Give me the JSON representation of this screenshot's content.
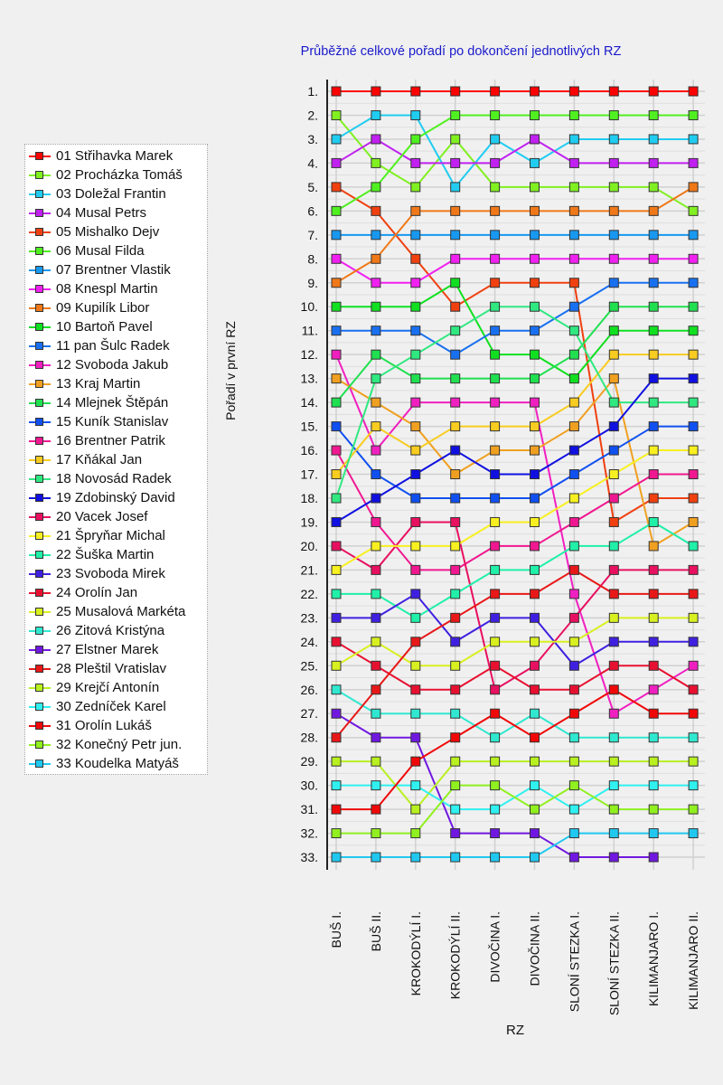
{
  "chart_data": {
    "type": "line",
    "title": "Průběžné celkové pořadí po dokončení jednotlivých RZ",
    "xlabel": "RZ",
    "ylabel": "Pořadí v první RZ",
    "categories": [
      "BUŠ I.",
      "BUŠ II.",
      "KROKODÝLÍ I.",
      "KROKODÝLÍ II.",
      "DIVOČINA I.",
      "DIVOČINA II.",
      "SLONÍ STEZKA I.",
      "SLONÍ STEZKA II.",
      "KILIMANJARO I.",
      "KILIMANJARO II."
    ],
    "yticks": [
      "1.",
      "2.",
      "3.",
      "4.",
      "5.",
      "6.",
      "7.",
      "8.",
      "9.",
      "10.",
      "11.",
      "12.",
      "13.",
      "14.",
      "15.",
      "16.",
      "17.",
      "18.",
      "19.",
      "20.",
      "21.",
      "22.",
      "23.",
      "24.",
      "25.",
      "26.",
      "27.",
      "28.",
      "29.",
      "30.",
      "31.",
      "32.",
      "33."
    ],
    "ylim": [
      1,
      33
    ],
    "y_inverted": true,
    "grid": true,
    "legend_position": "left",
    "series": [
      {
        "name": "01 Střihavka Marek",
        "color": "#ff0000",
        "values": [
          1,
          1,
          1,
          1,
          1,
          1,
          1,
          1,
          1,
          1
        ]
      },
      {
        "name": "02 Procházka Tomáš",
        "color": "#80f020",
        "values": [
          2,
          4,
          5,
          3,
          5,
          5,
          5,
          5,
          5,
          6
        ]
      },
      {
        "name": "03 Doležal Frantin",
        "color": "#20ccf0",
        "values": [
          3,
          2,
          2,
          5,
          3,
          4,
          3,
          3,
          3,
          3
        ]
      },
      {
        "name": "04 Musal Petrs",
        "color": "#c020f0",
        "values": [
          4,
          3,
          4,
          4,
          4,
          3,
          4,
          4,
          4,
          4
        ]
      },
      {
        "name": "05 Mishalko Dejv",
        "color": "#f04010",
        "values": [
          5,
          6,
          8,
          10,
          9,
          9,
          9,
          19,
          18,
          18
        ]
      },
      {
        "name": "06 Musal Filda",
        "color": "#50f020",
        "values": [
          6,
          5,
          3,
          2,
          2,
          2,
          2,
          2,
          2,
          2
        ]
      },
      {
        "name": "07 Brentner Vlastik",
        "color": "#1898f0",
        "values": [
          7,
          7,
          7,
          7,
          7,
          7,
          7,
          7,
          7,
          7
        ]
      },
      {
        "name": "08 Knespl Martin",
        "color": "#f020f0",
        "values": [
          8,
          9,
          9,
          8,
          8,
          8,
          8,
          8,
          8,
          8
        ]
      },
      {
        "name": "09 Kupilík Libor",
        "color": "#f07818",
        "values": [
          9,
          8,
          6,
          6,
          6,
          6,
          6,
          6,
          6,
          5
        ]
      },
      {
        "name": "10 Bartoň Pavel",
        "color": "#10e020",
        "values": [
          10,
          10,
          10,
          9,
          12,
          12,
          13,
          11,
          11,
          11
        ]
      },
      {
        "name": "11 pan Šulc Radek",
        "color": "#1870f0",
        "values": [
          11,
          11,
          11,
          12,
          11,
          11,
          10,
          9,
          9,
          9
        ]
      },
      {
        "name": "12 Svoboda Jakub",
        "color": "#f020c0",
        "values": [
          12,
          16,
          14,
          14,
          14,
          14,
          22,
          27,
          26,
          25
        ]
      },
      {
        "name": "13 Kraj Martin",
        "color": "#f0a020",
        "values": [
          13,
          14,
          15,
          17,
          16,
          16,
          15,
          13,
          20,
          19
        ]
      },
      {
        "name": "14 Mlejnek Štěpán",
        "color": "#20e050",
        "values": [
          14,
          12,
          13,
          13,
          13,
          13,
          12,
          10,
          10,
          10
        ]
      },
      {
        "name": "15 Kuník Stanislav",
        "color": "#1050f0",
        "values": [
          15,
          17,
          18,
          18,
          18,
          18,
          17,
          16,
          15,
          15
        ]
      },
      {
        "name": "16 Brentner Patrik",
        "color": "#f01890",
        "values": [
          16,
          19,
          21,
          21,
          20,
          20,
          19,
          18,
          17,
          17
        ]
      },
      {
        "name": "17 Kňákal Jan",
        "color": "#f8cc20",
        "values": [
          17,
          15,
          16,
          15,
          15,
          15,
          14,
          12,
          12,
          12
        ]
      },
      {
        "name": "18 Novosád Radek",
        "color": "#30e880",
        "values": [
          18,
          13,
          12,
          11,
          10,
          10,
          11,
          14,
          14,
          14
        ]
      },
      {
        "name": "19 Zdobinský David",
        "color": "#1010e0",
        "values": [
          19,
          18,
          17,
          16,
          17,
          17,
          16,
          15,
          13,
          13
        ]
      },
      {
        "name": "20 Vacek Josef",
        "color": "#e81060",
        "values": [
          20,
          21,
          19,
          19,
          26,
          25,
          23,
          21,
          21,
          21
        ]
      },
      {
        "name": "21 Špryňar Michal",
        "color": "#f8f020",
        "values": [
          21,
          20,
          20,
          20,
          19,
          19,
          18,
          17,
          16,
          16
        ]
      },
      {
        "name": "22 Šuška Martin",
        "color": "#20f0a8",
        "values": [
          22,
          22,
          23,
          22,
          21,
          21,
          20,
          20,
          19,
          20
        ]
      },
      {
        "name": "23 Svoboda Mirek",
        "color": "#4020e0",
        "values": [
          23,
          23,
          22,
          24,
          23,
          23,
          25,
          24,
          24,
          24
        ]
      },
      {
        "name": "24 Orolín Jan",
        "color": "#e81030",
        "values": [
          24,
          25,
          26,
          26,
          25,
          26,
          26,
          25,
          25,
          26
        ]
      },
      {
        "name": "25 Musalová Markéta",
        "color": "#d8f020",
        "values": [
          25,
          24,
          25,
          25,
          24,
          24,
          24,
          23,
          23,
          23
        ]
      },
      {
        "name": "26 Zitová Kristýna",
        "color": "#30e8d0",
        "values": [
          26,
          27,
          27,
          27,
          28,
          27,
          28,
          28,
          28,
          28
        ]
      },
      {
        "name": "27 Elstner Marek",
        "color": "#7018e0",
        "values": [
          27,
          28,
          28,
          32,
          32,
          32,
          33,
          33,
          33,
          null
        ]
      },
      {
        "name": "28 Pleštil Vratislav",
        "color": "#e81818",
        "values": [
          28,
          26,
          24,
          23,
          22,
          22,
          21,
          22,
          22,
          22
        ]
      },
      {
        "name": "29 Krejčí Antonín",
        "color": "#b8f020",
        "values": [
          29,
          29,
          31,
          29,
          29,
          29,
          29,
          29,
          29,
          29
        ]
      },
      {
        "name": "30 Zedníček Karel",
        "color": "#30f0f0",
        "values": [
          30,
          30,
          30,
          31,
          31,
          30,
          31,
          30,
          30,
          30
        ]
      },
      {
        "name": "31 Orolín Lukáš",
        "color": "#f00808",
        "values": [
          31,
          31,
          29,
          28,
          27,
          28,
          27,
          26,
          27,
          27
        ]
      },
      {
        "name": "32 Konečný Petr jun.",
        "color": "#90f020",
        "values": [
          32,
          32,
          32,
          30,
          30,
          31,
          30,
          31,
          31,
          31
        ]
      },
      {
        "name": "33 Koudelka Matyáš",
        "color": "#20c8f0",
        "values": [
          33,
          33,
          33,
          33,
          33,
          33,
          32,
          32,
          32,
          32
        ]
      }
    ]
  }
}
